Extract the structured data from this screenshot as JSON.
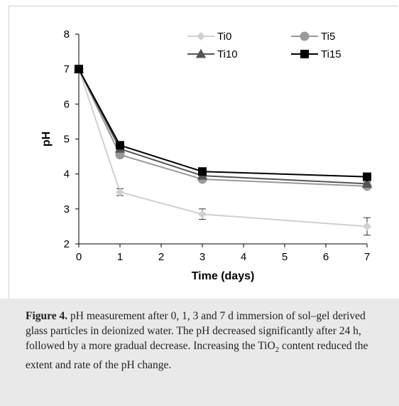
{
  "chart_data": {
    "type": "line",
    "xlabel": "Time (days)",
    "ylabel": "pH",
    "x": [
      0,
      1,
      3,
      7
    ],
    "xlim": [
      0,
      7
    ],
    "ylim": [
      2,
      8
    ],
    "xticks": [
      0,
      1,
      2,
      3,
      4,
      5,
      6,
      7
    ],
    "yticks": [
      2,
      3,
      4,
      5,
      6,
      7,
      8
    ],
    "grid": false,
    "legend_position": "top",
    "series": [
      {
        "name": "Ti0",
        "values": [
          7.0,
          3.48,
          2.85,
          2.5
        ],
        "errors": [
          0.0,
          0.1,
          0.15,
          0.25
        ],
        "color": "#d0d0d0",
        "marker": "diamond"
      },
      {
        "name": "Ti5",
        "values": [
          7.0,
          4.55,
          3.85,
          3.65
        ],
        "errors": [
          0.0,
          0.05,
          0.05,
          0.05
        ],
        "color": "#999999",
        "marker": "circle"
      },
      {
        "name": "Ti10",
        "values": [
          7.0,
          4.72,
          3.95,
          3.72
        ],
        "errors": [
          0.0,
          0.05,
          0.05,
          0.05
        ],
        "color": "#555555",
        "marker": "triangle"
      },
      {
        "name": "Ti15",
        "values": [
          7.0,
          4.82,
          4.07,
          3.92
        ],
        "errors": [
          0.0,
          0.05,
          0.05,
          0.1
        ],
        "color": "#000000",
        "marker": "square"
      }
    ]
  },
  "caption": {
    "figure_label": "Figure 4.",
    "text_part1": "pH measurement after 0, 1, 3 and 7 d immersion of sol–gel derived glass particles in deionized water. The pH decreased significantly after 24 h, followed by a more gradual decrease. Increasing the TiO",
    "subscript": "2",
    "text_part2": " content reduced the extent and rate of the pH change."
  }
}
